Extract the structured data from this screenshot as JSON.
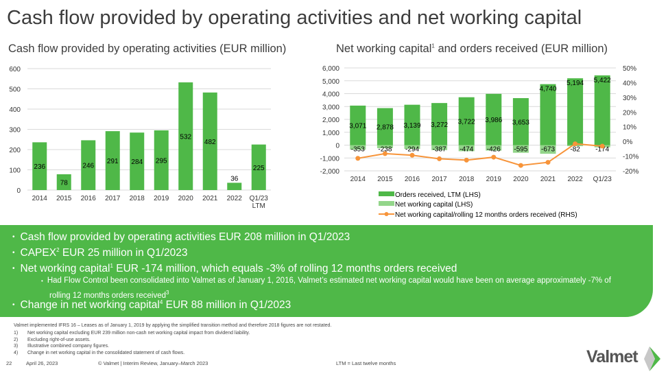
{
  "title": "Cash flow provided by operating activities and net working capital",
  "left_subtitle": "Cash flow provided by operating activities (EUR million)",
  "right_subtitle_a": "Net working capital",
  "right_subtitle_sup": "1",
  "right_subtitle_b": " and orders received (EUR million)",
  "chart_data": [
    {
      "type": "bar",
      "title": "Cash flow provided by operating activities (EUR million)",
      "categories": [
        "2014",
        "2015",
        "2016",
        "2017",
        "2018",
        "2019",
        "2020",
        "2021",
        "2022",
        "Q1/23 LTM"
      ],
      "values": [
        236,
        78,
        246,
        291,
        284,
        295,
        532,
        482,
        36,
        225
      ],
      "yticks": [
        "0",
        "100",
        "200",
        "300",
        "400",
        "500",
        "600"
      ],
      "ylim": [
        0,
        600
      ],
      "color": "#4fb848"
    },
    {
      "type": "bar",
      "title": "Net working capital and orders received (EUR million)",
      "categories": [
        "2014",
        "2015",
        "2016",
        "2017",
        "2018",
        "2019",
        "2020",
        "2021",
        "2022",
        "Q1/23"
      ],
      "series": [
        {
          "name": "Orders received, LTM (LHS)",
          "values": [
            3071,
            2878,
            3139,
            3272,
            3722,
            3986,
            3653,
            4740,
            5194,
            5422
          ],
          "labels": [
            "3,071",
            "2,878",
            "3,139",
            "3,272",
            "3,722",
            "3,986",
            "3,653",
            "4,740",
            "5,194",
            "5,422"
          ],
          "color": "#4fb848"
        },
        {
          "name": "Net working capital (LHS)",
          "values": [
            -353,
            -238,
            -294,
            -387,
            -474,
            -426,
            -595,
            -673,
            -82,
            -174
          ],
          "labels": [
            "-353",
            "-238",
            "-294",
            "-387",
            "-474",
            "-426",
            "-595",
            "-673",
            "-82",
            "-174"
          ],
          "color": "#93d58a"
        },
        {
          "name": "Net working capital/rolling 12 months orders received (RHS)",
          "type": "line",
          "values": [
            -11.5,
            -8.3,
            -9.4,
            -11.8,
            -12.7,
            -10.7,
            -16.3,
            -14.2,
            -1.6,
            -3.2
          ],
          "color": "#f7943a"
        }
      ],
      "yticks_left": [
        "-2,000",
        "-1,000",
        "0",
        "1,000",
        "2,000",
        "3,000",
        "4,000",
        "5,000",
        "6,000"
      ],
      "ylim_left": [
        -2000,
        6000
      ],
      "yticks_right": [
        "-20%",
        "-10%",
        "0%",
        "10%",
        "20%",
        "30%",
        "40%",
        "50%"
      ],
      "ylim_right": [
        -20,
        50
      ],
      "legend": "bottom"
    }
  ],
  "bullets": {
    "b1": "Cash flow provided by operating activities EUR 208 million in Q1/2023",
    "b2a": "CAPEX",
    "b2s": "2",
    "b2b": " EUR 25 million in Q1/2023",
    "b3a": "Net working capital",
    "b3s": "1",
    "b3b": " EUR -174 million, which equals -3% of rolling 12 months orders received",
    "b4a": "Had Flow Control been consolidated into Valmet as of January 1, 2016, Valmet’s estimated net working capital would have been on average approximately -7% of rolling 12 months orders received",
    "b4s": "3",
    "b5a": "Change in net working capital",
    "b5s": "4",
    "b5b": " EUR 88 million in Q1/2023",
    "dot": "•"
  },
  "footnotes": {
    "intro": "Valmet implemented IFRS 16 – Leases as of January 1, 2019 by applying the simplified transition method and therefore 2018 figures are not restated.",
    "items": [
      [
        "1)",
        "Net working capital excluding EUR 239 million non-cash net working capital impact from dividend liability."
      ],
      [
        "2)",
        "Excluding right-of-use assets."
      ],
      [
        "3)",
        "Illustrative combined company figures."
      ],
      [
        "4)",
        "Change in net working capital in the consolidated statement of cash flows."
      ]
    ]
  },
  "footer": {
    "page": "22",
    "date": "April 26, 2023",
    "source": "© Valmet  | Interim Review, January–March 2023",
    "ltm": "LTM = Last twelve months",
    "logo": "Valmet"
  }
}
